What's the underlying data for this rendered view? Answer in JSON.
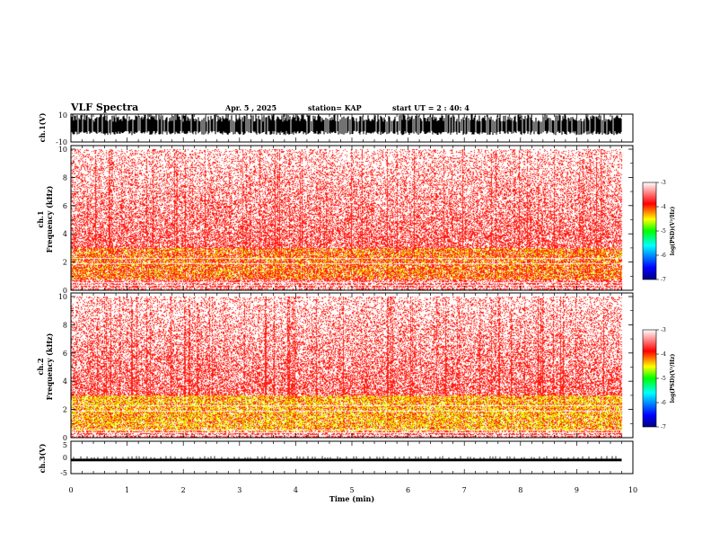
{
  "header": {
    "title": "VLF Spectra",
    "date": "Apr. 5 , 2025",
    "station": "station= KAP",
    "start": "start UT = 2 : 40: 4"
  },
  "colors": {
    "colormap": [
      "#000080",
      "#0000ff",
      "#00ffff",
      "#00ff00",
      "#ffff00",
      "#ff0000",
      "#ffffff"
    ]
  },
  "chart_data": [
    {
      "type": "line",
      "panel": "ch1-waveform",
      "ylabel": "ch.1(V)",
      "ylim": [
        -10,
        10
      ],
      "y_tick_labels": [
        "10",
        "-10"
      ],
      "x_range_min": [
        0,
        9.8
      ],
      "description_values": {
        "typical_peak_V": 10,
        "min_V": -10
      }
    },
    {
      "type": "heatmap",
      "panel": "ch1-spectrogram",
      "ylabel": "ch.1 Frequency (kHz)",
      "ylim": [
        0,
        10
      ],
      "y_ticks": [
        0,
        2,
        4,
        6,
        8,
        10
      ],
      "band_kHz": [
        0.8,
        3.0
      ],
      "colorbar": {
        "label": "log(PSD)(V²/Hz)",
        "range": [
          -7,
          -3
        ],
        "ticks": [
          "-3",
          "-4",
          "-5",
          "-6",
          "-7"
        ]
      }
    },
    {
      "type": "heatmap",
      "panel": "ch2-spectrogram",
      "ylabel": "ch.2 Frequency (kHz)",
      "ylim": [
        0,
        10
      ],
      "y_ticks": [
        0,
        2,
        4,
        6,
        8,
        10
      ],
      "band_kHz": [
        0.5,
        3.0
      ],
      "colorbar": {
        "label": "log(PSD)(V²/Hz)",
        "range": [
          -7,
          -3
        ],
        "ticks": [
          "-3",
          "-4",
          "-5",
          "-6",
          "-7"
        ]
      }
    },
    {
      "type": "line",
      "panel": "ch3-waveform",
      "ylabel": "ch.3(V)",
      "ylim": [
        -5,
        5
      ],
      "y_tick_labels": [
        "5",
        "0",
        "-5"
      ],
      "level_V": [
        -1.2,
        -0.4
      ]
    }
  ],
  "x_axis": {
    "label": "Time (min)",
    "ticks": [
      "0",
      "1",
      "2",
      "3",
      "4",
      "5",
      "6",
      "7",
      "8",
      "9",
      "10"
    ],
    "xlim": [
      0,
      10
    ],
    "data_end_min": 9.8
  },
  "colorbar_label": "log(PSD)(V",
  "colorbar_label_tail": "/Hz)"
}
